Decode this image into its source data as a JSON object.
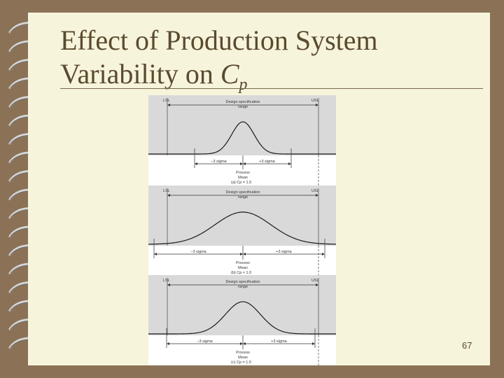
{
  "slide": {
    "title_line1": "Effect of Production System",
    "title_line2_prefix": "Variability on ",
    "title_var": "C",
    "title_sub": "p",
    "page_number": "67"
  },
  "figure": {
    "panels": [
      {
        "lsl": "LSL",
        "usl": "USL",
        "spec_label_1": "Design specification",
        "spec_label_2": "range",
        "left_sigma": "−3 sigma",
        "right_sigma": "+3 sigma",
        "mean_label_1": "Process",
        "mean_label_2": "Mean",
        "caption": "(a) Cp = 1.5"
      },
      {
        "lsl": "LSL",
        "usl": "USL",
        "spec_label_1": "Design specification",
        "spec_label_2": "range",
        "left_sigma": "−3 sigma",
        "right_sigma": "+3 sigma",
        "mean_label_1": "Process",
        "mean_label_2": "Mean",
        "caption": "(b) Cp < 1.0"
      },
      {
        "lsl": "LSL",
        "usl": "USL",
        "spec_label_1": "Design specification",
        "spec_label_2": "range",
        "left_sigma": "−3 sigma",
        "right_sigma": "+3 sigma",
        "mean_label_1": "Process",
        "mean_label_2": "Mean",
        "caption": "(c) Cp = 1.0"
      }
    ]
  }
}
